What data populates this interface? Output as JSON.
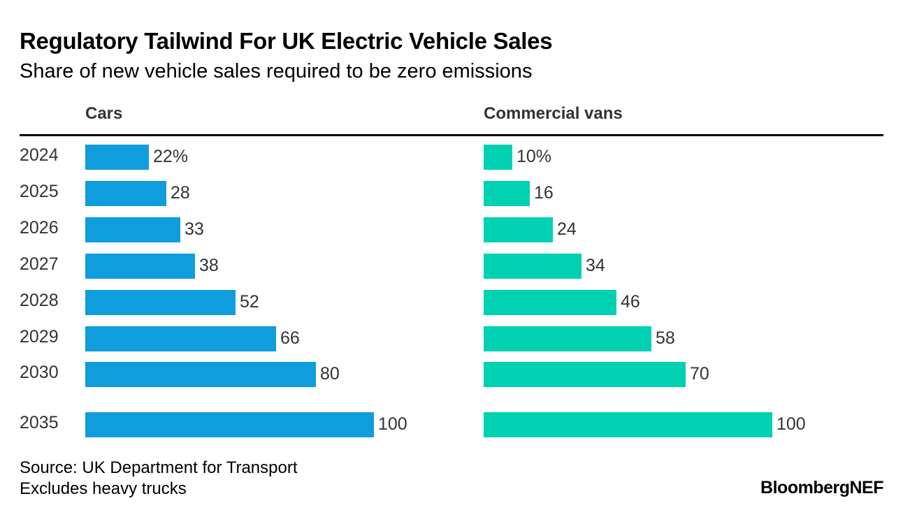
{
  "chart_data": {
    "type": "bar",
    "orientation": "horizontal",
    "title": "Regulatory Tailwind For UK Electric Vehicle Sales",
    "subtitle": "Share of new vehicle sales required to be zero emissions",
    "categories": [
      "2024",
      "2025",
      "2026",
      "2027",
      "2028",
      "2029",
      "2030",
      "2035"
    ],
    "value_labels": [
      "22%",
      "28",
      "33",
      "38",
      "52",
      "66",
      "80",
      "100"
    ],
    "xlim": [
      0,
      100
    ],
    "grid": false,
    "series": [
      {
        "name": "Cars",
        "color": "#0f9ddd",
        "values": [
          22,
          28,
          33,
          38,
          52,
          66,
          80,
          100
        ],
        "labels": [
          "22%",
          "28",
          "33",
          "38",
          "52",
          "66",
          "80",
          "100"
        ]
      },
      {
        "name": "Commercial vans",
        "color": "#00d1b2",
        "values": [
          10,
          16,
          24,
          34,
          46,
          58,
          70,
          100
        ],
        "labels": [
          "10%",
          "16",
          "24",
          "34",
          "46",
          "58",
          "70",
          "100"
        ]
      }
    ]
  },
  "footer": {
    "source": "Source: UK Department for Transport",
    "note": "Excludes heavy trucks",
    "brand": "BloombergNEF"
  }
}
